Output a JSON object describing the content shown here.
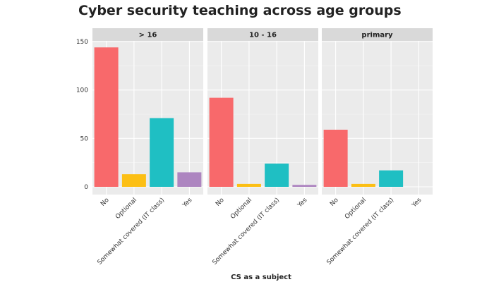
{
  "chart_data": {
    "type": "bar",
    "title": "Cyber security teaching across age groups",
    "xlabel": "CS as a subject",
    "ylabel": "",
    "ylim": [
      0,
      150
    ],
    "yticks": [
      "0",
      "50",
      "100",
      "150"
    ],
    "categories": [
      "No",
      "Optional",
      "Somewhat covered (IT class)",
      "Yes"
    ],
    "colors": [
      "#f8696b",
      "#fcbf14",
      "#1fbfc3",
      "#ad85c0"
    ],
    "panels": [
      {
        "name": "> 16",
        "values": [
          144,
          13,
          71,
          15
        ]
      },
      {
        "name": "10 - 16",
        "values": [
          92,
          3,
          24,
          2
        ]
      },
      {
        "name": "primary",
        "values": [
          59,
          3,
          17,
          0
        ]
      }
    ]
  }
}
